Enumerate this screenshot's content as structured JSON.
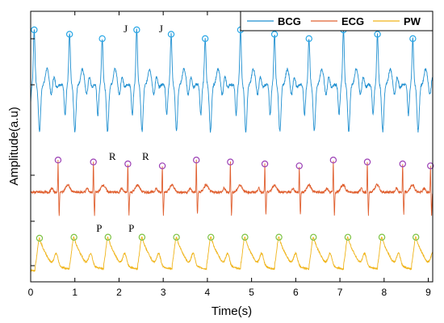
{
  "chart_data": {
    "type": "line",
    "xlabel": "Time(s)",
    "ylabel": "Amplitude(a.u)",
    "xlim": [
      0,
      9.1
    ],
    "x_ticks": [
      "0",
      "1",
      "2",
      "3",
      "4",
      "5",
      "6",
      "7",
      "8",
      "9"
    ],
    "grid": false,
    "legend_position": "top-right",
    "series": [
      {
        "name": "BCG",
        "color": "#1f8fd0",
        "marker_color": "#2aa7e6",
        "peaks_time_s": [
          0.08,
          0.88,
          1.62,
          2.4,
          3.18,
          3.95,
          4.75,
          5.52,
          6.3,
          7.08,
          7.85,
          8.65
        ],
        "peak_label": "J"
      },
      {
        "name": "ECG",
        "color": "#e06030",
        "marker_color": "#9b3fb5",
        "peaks_time_s": [
          0.62,
          1.42,
          2.2,
          2.98,
          3.75,
          4.52,
          5.3,
          6.08,
          6.85,
          7.62,
          8.42,
          9.05
        ],
        "peak_label": "R"
      },
      {
        "name": "PW",
        "color": "#f0b419",
        "marker_color": "#7cc243",
        "peaks_time_s": [
          0.2,
          0.98,
          1.75,
          2.52,
          3.3,
          4.08,
          4.85,
          5.62,
          6.4,
          7.18,
          7.95,
          8.72
        ],
        "peak_label": "P"
      }
    ],
    "annotations": [
      {
        "text": "J",
        "x": 2.15,
        "series": "BCG"
      },
      {
        "text": "J",
        "x": 2.95,
        "series": "BCG"
      },
      {
        "text": "R",
        "x": 1.85,
        "series": "ECG"
      },
      {
        "text": "R",
        "x": 2.6,
        "series": "ECG"
      },
      {
        "text": "P",
        "x": 1.55,
        "series": "PW"
      },
      {
        "text": "P",
        "x": 2.28,
        "series": "PW"
      }
    ]
  }
}
